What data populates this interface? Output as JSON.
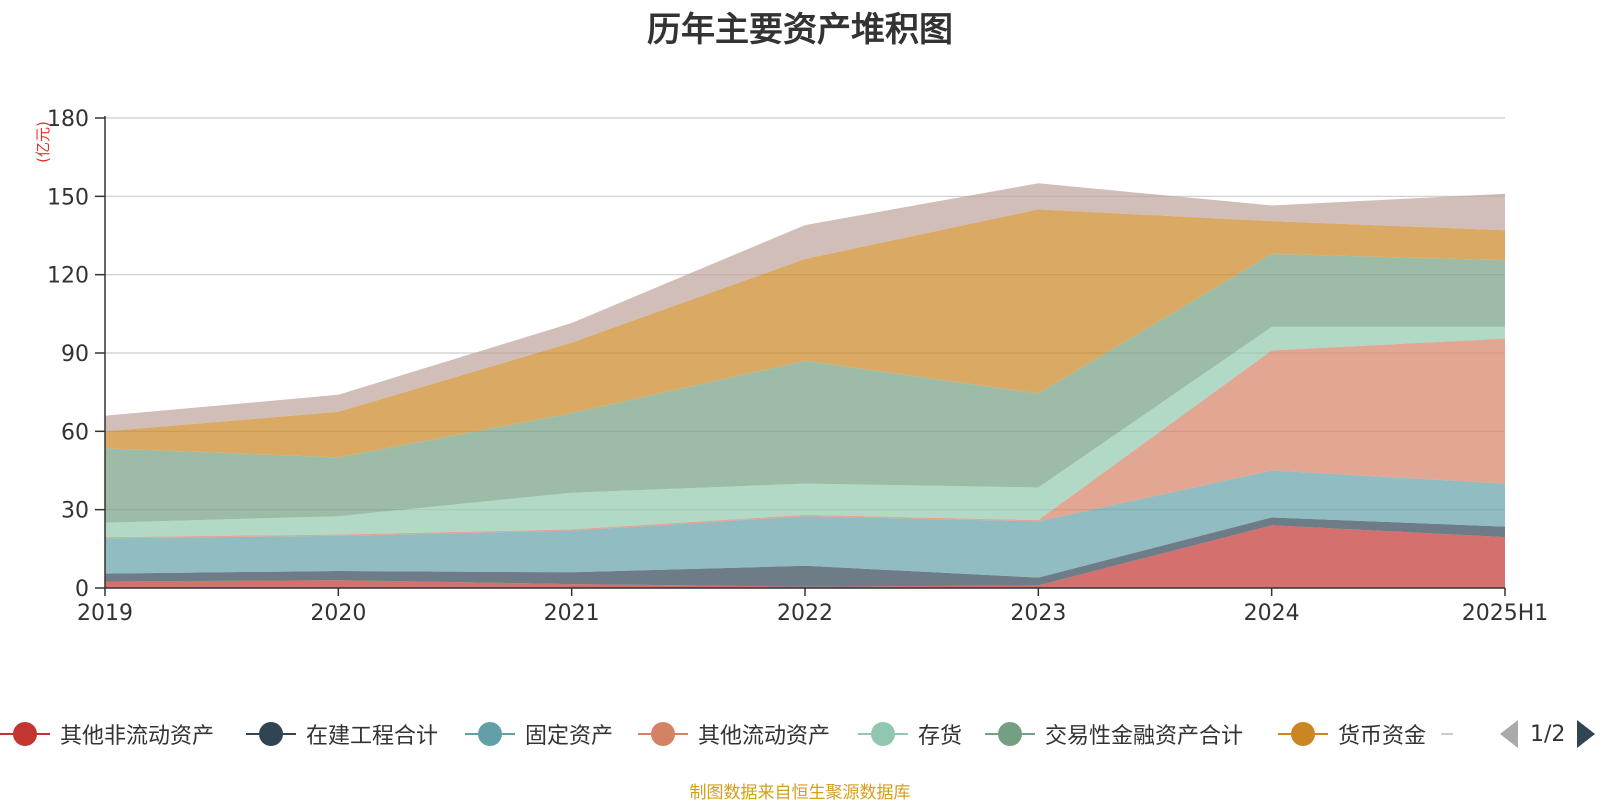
{
  "title": "历年主要资产堆积图",
  "source": "制图数据来自恒生聚源数据库",
  "pager": "1/2",
  "chart_data": {
    "type": "area",
    "stacked": true,
    "title": "历年主要资产堆积图",
    "ylabel": "(亿元)",
    "ylim": [
      0,
      180
    ],
    "yticks": [
      0,
      30,
      60,
      90,
      120,
      150,
      180
    ],
    "grid": true,
    "legend_position": "bottom",
    "categories": [
      "2019",
      "2020",
      "2021",
      "2022",
      "2023",
      "2024",
      "2025H1"
    ],
    "series": [
      {
        "name": "其他非流动资产",
        "color": "#c23531",
        "values": [
          2.5,
          3,
          1.5,
          0.5,
          1,
          24,
          19.5
        ]
      },
      {
        "name": "在建工程合计",
        "color": "#2f4554",
        "values": [
          3,
          3.5,
          4.5,
          8,
          3,
          3,
          4
        ]
      },
      {
        "name": "固定资产",
        "color": "#61a0a8",
        "values": [
          13.5,
          13.5,
          16,
          19,
          21.5,
          18,
          16.5
        ]
      },
      {
        "name": "其他流动资产",
        "color": "#d48265",
        "values": [
          0.5,
          0.5,
          0.5,
          0.5,
          0.5,
          46,
          55.5
        ]
      },
      {
        "name": "存货",
        "color": "#91c7ae",
        "values": [
          5.5,
          7,
          14,
          12,
          12.5,
          9,
          4.5
        ]
      },
      {
        "name": "交易性金融资产合计",
        "color": "#749f83",
        "values": [
          28.5,
          22.5,
          30.5,
          47,
          36,
          28,
          25.5
        ]
      },
      {
        "name": "货币资金",
        "color": "#ca8622",
        "values": [
          6.5,
          17.5,
          27,
          39,
          70.5,
          12.5,
          11.5
        ]
      },
      {
        "name": "",
        "color": "#bda29a",
        "values": [
          6,
          6.5,
          7.5,
          13,
          10,
          6,
          14
        ]
      }
    ]
  }
}
